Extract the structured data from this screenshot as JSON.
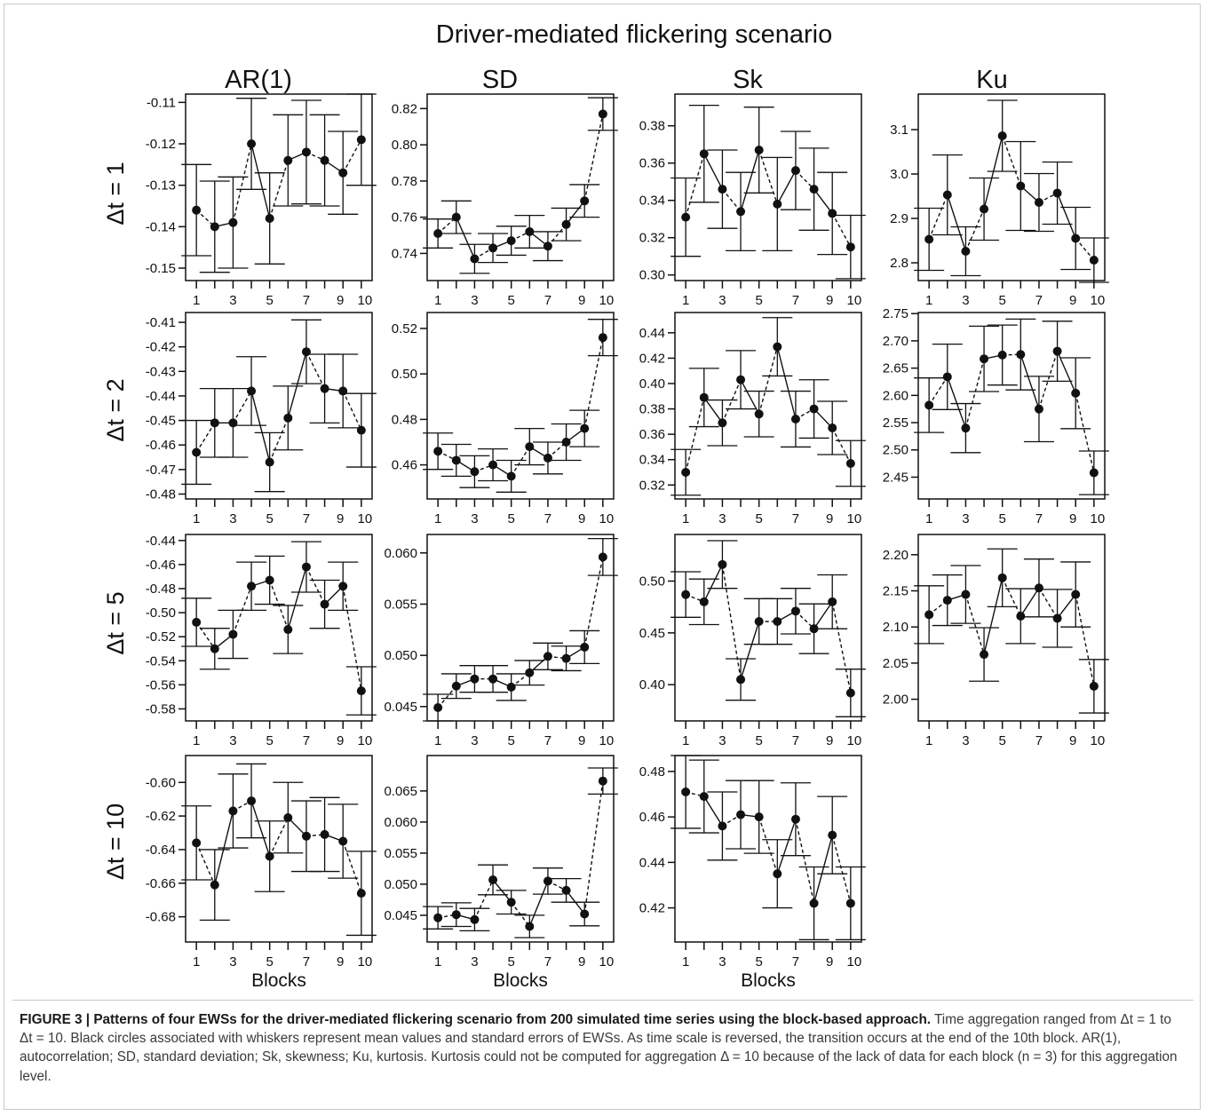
{
  "figure": {
    "main_title": "Driver-mediated flickering scenario",
    "column_titles": [
      "AR(1)",
      "SD",
      "Sk",
      "Ku"
    ],
    "row_titles": [
      "Δt = 1",
      "Δt = 2",
      "Δt = 5",
      "Δt = 10"
    ],
    "x_axis_label": "Blocks",
    "marker_color": "#111111"
  },
  "caption": {
    "bold_text": "FIGURE 3 | Patterns of four EWSs for the driver-mediated flickering scenario from 200 simulated time series using the block-based approach.",
    "body_text": " Time aggregation ranged from Δt = 1 to Δt = 10. Black circles associated with whiskers represent mean values and standard errors of EWSs. As time scale is reversed, the transition occurs at the end of the 10th block. AR(1), autocorrelation; SD, standard deviation; Sk, skewness; Ku, kurtosis. Kurtosis could not be computed for aggregation Δ = 10 because of the lack of data for each block (n = 3) for this aggregation level."
  },
  "chart_data": [
    {
      "type": "scatter",
      "panel": "AR(1) Δt = 1",
      "x": [
        1,
        2,
        3,
        4,
        5,
        6,
        7,
        8,
        9,
        10
      ],
      "y": [
        -0.136,
        -0.14,
        -0.139,
        -0.12,
        -0.138,
        -0.124,
        -0.122,
        -0.124,
        -0.127,
        -0.119
      ],
      "err": [
        0.011,
        0.011,
        0.011,
        0.011,
        0.011,
        0.011,
        0.0125,
        0.011,
        0.01,
        0.011
      ],
      "ylim": [
        -0.153,
        -0.108
      ],
      "yticks": [
        -0.15,
        -0.14,
        -0.13,
        -0.12,
        -0.11
      ],
      "ytick_labels": [
        "-0.15",
        "-0.14",
        "-0.13",
        "-0.12",
        "-0.11"
      ],
      "xtick_labels": [
        "1",
        "3",
        "5",
        "7",
        "9",
        "10"
      ],
      "x_axis_label": ""
    },
    {
      "type": "scatter",
      "panel": "SD Δt = 1",
      "x": [
        1,
        2,
        3,
        4,
        5,
        6,
        7,
        8,
        9,
        10
      ],
      "y": [
        0.751,
        0.76,
        0.737,
        0.743,
        0.747,
        0.752,
        0.744,
        0.756,
        0.769,
        0.817
      ],
      "err": [
        0.008,
        0.009,
        0.008,
        0.008,
        0.008,
        0.009,
        0.008,
        0.009,
        0.009,
        0.009
      ],
      "ylim": [
        0.725,
        0.828
      ],
      "yticks": [
        0.74,
        0.76,
        0.78,
        0.8,
        0.82
      ],
      "ytick_labels": [
        "0.74",
        "0.76",
        "0.78",
        "0.80",
        "0.82"
      ],
      "xtick_labels": [
        "1",
        "3",
        "5",
        "7",
        "9",
        "10"
      ],
      "x_axis_label": ""
    },
    {
      "type": "scatter",
      "panel": "Sk Δt = 1",
      "x": [
        1,
        2,
        3,
        4,
        5,
        6,
        7,
        8,
        9,
        10
      ],
      "y": [
        0.331,
        0.365,
        0.346,
        0.334,
        0.367,
        0.338,
        0.356,
        0.346,
        0.333,
        0.315
      ],
      "err": [
        0.021,
        0.026,
        0.021,
        0.021,
        0.023,
        0.025,
        0.021,
        0.022,
        0.022,
        0.017
      ],
      "ylim": [
        0.297,
        0.397
      ],
      "yticks": [
        0.3,
        0.32,
        0.34,
        0.36,
        0.38
      ],
      "ytick_labels": [
        "0.30",
        "0.32",
        "0.34",
        "0.36",
        "0.38"
      ],
      "xtick_labels": [
        "1",
        "3",
        "5",
        "7",
        "9",
        "10"
      ],
      "x_axis_label": ""
    },
    {
      "type": "scatter",
      "panel": "Ku Δt = 1",
      "x": [
        1,
        2,
        3,
        4,
        5,
        6,
        7,
        8,
        9,
        10
      ],
      "y": [
        2.853,
        2.953,
        2.826,
        2.921,
        3.086,
        2.973,
        2.936,
        2.957,
        2.855,
        2.806
      ],
      "err": [
        0.07,
        0.09,
        0.055,
        0.07,
        0.08,
        0.1,
        0.065,
        0.07,
        0.07,
        0.05
      ],
      "ylim": [
        2.76,
        3.18
      ],
      "yticks": [
        2.8,
        2.9,
        3.0,
        3.1
      ],
      "ytick_labels": [
        "2.8",
        "2.9",
        "3.0",
        "3.1"
      ],
      "xtick_labels": [
        "1",
        "3",
        "5",
        "7",
        "9",
        "10"
      ],
      "x_axis_label": ""
    },
    {
      "type": "scatter",
      "panel": "AR(1) Δt = 2",
      "x": [
        1,
        2,
        3,
        4,
        5,
        6,
        7,
        8,
        9,
        10
      ],
      "y": [
        -0.463,
        -0.451,
        -0.451,
        -0.438,
        -0.467,
        -0.449,
        -0.422,
        -0.437,
        -0.438,
        -0.454
      ],
      "err": [
        0.013,
        0.014,
        0.014,
        0.014,
        0.012,
        0.013,
        0.013,
        0.014,
        0.015,
        0.015
      ],
      "ylim": [
        -0.482,
        -0.406
      ],
      "yticks": [
        -0.48,
        -0.47,
        -0.46,
        -0.45,
        -0.44,
        -0.43,
        -0.42,
        -0.41
      ],
      "ytick_labels": [
        "-0.48",
        "-0.47",
        "-0.46",
        "-0.45",
        "-0.44",
        "-0.43",
        "-0.42",
        "-0.41"
      ],
      "xtick_labels": [
        "1",
        "3",
        "5",
        "7",
        "9",
        "10"
      ],
      "x_axis_label": ""
    },
    {
      "type": "scatter",
      "panel": "SD Δt = 2",
      "x": [
        1,
        2,
        3,
        4,
        5,
        6,
        7,
        8,
        9,
        10
      ],
      "y": [
        0.466,
        0.462,
        0.457,
        0.46,
        0.455,
        0.468,
        0.463,
        0.47,
        0.476,
        0.516
      ],
      "err": [
        0.008,
        0.007,
        0.007,
        0.007,
        0.007,
        0.008,
        0.007,
        0.008,
        0.008,
        0.008
      ],
      "ylim": [
        0.445,
        0.527
      ],
      "yticks": [
        0.46,
        0.48,
        0.5,
        0.52
      ],
      "ytick_labels": [
        "0.46",
        "0.48",
        "0.50",
        "0.52"
      ],
      "xtick_labels": [
        "1",
        "3",
        "5",
        "7",
        "9",
        "10"
      ],
      "x_axis_label": ""
    },
    {
      "type": "scatter",
      "panel": "Sk Δt = 2",
      "x": [
        1,
        2,
        3,
        4,
        5,
        6,
        7,
        8,
        9,
        10
      ],
      "y": [
        0.33,
        0.389,
        0.369,
        0.403,
        0.376,
        0.429,
        0.372,
        0.38,
        0.365,
        0.337
      ],
      "err": [
        0.018,
        0.023,
        0.018,
        0.023,
        0.018,
        0.023,
        0.022,
        0.023,
        0.021,
        0.018
      ],
      "ylim": [
        0.309,
        0.456
      ],
      "yticks": [
        0.32,
        0.34,
        0.36,
        0.38,
        0.4,
        0.42,
        0.44
      ],
      "ytick_labels": [
        "0.32",
        "0.34",
        "0.36",
        "0.38",
        "0.40",
        "0.42",
        "0.44"
      ],
      "xtick_labels": [
        "1",
        "3",
        "5",
        "7",
        "9",
        "10"
      ],
      "x_axis_label": ""
    },
    {
      "type": "scatter",
      "panel": "Ku Δt = 2",
      "x": [
        1,
        2,
        3,
        4,
        5,
        6,
        7,
        8,
        9,
        10
      ],
      "y": [
        2.582,
        2.634,
        2.54,
        2.667,
        2.674,
        2.675,
        2.575,
        2.681,
        2.604,
        2.458
      ],
      "err": [
        0.05,
        0.06,
        0.045,
        0.06,
        0.055,
        0.065,
        0.06,
        0.055,
        0.065,
        0.04
      ],
      "ylim": [
        2.41,
        2.752
      ],
      "yticks": [
        2.45,
        2.5,
        2.55,
        2.6,
        2.65,
        2.7,
        2.75
      ],
      "ytick_labels": [
        "2.45",
        "2.50",
        "2.55",
        "2.60",
        "2.65",
        "2.70",
        "2.75"
      ],
      "xtick_labels": [
        "1",
        "3",
        "5",
        "7",
        "9",
        "10"
      ],
      "x_axis_label": ""
    },
    {
      "type": "scatter",
      "panel": "AR(1) Δt = 5",
      "x": [
        1,
        2,
        3,
        4,
        5,
        6,
        7,
        8,
        9,
        10
      ],
      "y": [
        -0.508,
        -0.53,
        -0.518,
        -0.478,
        -0.473,
        -0.514,
        -0.462,
        -0.493,
        -0.478,
        -0.565
      ],
      "err": [
        0.02,
        0.017,
        0.02,
        0.02,
        0.02,
        0.02,
        0.021,
        0.02,
        0.02,
        0.02
      ],
      "ylim": [
        -0.59,
        -0.435
      ],
      "yticks": [
        -0.58,
        -0.56,
        -0.54,
        -0.52,
        -0.5,
        -0.48,
        -0.46,
        -0.44
      ],
      "ytick_labels": [
        "-0.58",
        "-0.56",
        "-0.54",
        "-0.52",
        "-0.50",
        "-0.48",
        "-0.46",
        "-0.44"
      ],
      "xtick_labels": [
        "1",
        "3",
        "5",
        "7",
        "9",
        "10"
      ],
      "x_axis_label": ""
    },
    {
      "type": "scatter",
      "panel": "SD Δt = 5",
      "x": [
        1,
        2,
        3,
        4,
        5,
        6,
        7,
        8,
        9,
        10
      ],
      "y": [
        0.0449,
        0.047,
        0.0477,
        0.0477,
        0.0469,
        0.0483,
        0.0499,
        0.0497,
        0.0508,
        0.0596
      ],
      "err": [
        0.0013,
        0.0012,
        0.0013,
        0.0013,
        0.0013,
        0.0012,
        0.0013,
        0.0012,
        0.0016,
        0.0018
      ],
      "ylim": [
        0.0436,
        0.0618
      ],
      "yticks": [
        0.045,
        0.05,
        0.055,
        0.06
      ],
      "ytick_labels": [
        "0.045",
        "0.050",
        "0.055",
        "0.060"
      ],
      "xtick_labels": [
        "1",
        "3",
        "5",
        "7",
        "9",
        "10"
      ],
      "x_axis_label": ""
    },
    {
      "type": "scatter",
      "panel": "Sk Δt = 5",
      "x": [
        1,
        2,
        3,
        4,
        5,
        6,
        7,
        8,
        9,
        10
      ],
      "y": [
        0.487,
        0.48,
        0.516,
        0.405,
        0.461,
        0.461,
        0.471,
        0.454,
        0.48,
        0.392
      ],
      "err": [
        0.022,
        0.022,
        0.023,
        0.02,
        0.022,
        0.022,
        0.022,
        0.024,
        0.026,
        0.023
      ],
      "ylim": [
        0.365,
        0.545
      ],
      "yticks": [
        0.4,
        0.45,
        0.5
      ],
      "ytick_labels": [
        "0.40",
        "0.45",
        "0.50"
      ],
      "xtick_labels": [
        "1",
        "3",
        "5",
        "7",
        "9",
        "10"
      ],
      "x_axis_label": ""
    },
    {
      "type": "scatter",
      "panel": "Ku Δt = 5",
      "x": [
        1,
        2,
        3,
        4,
        5,
        6,
        7,
        8,
        9,
        10
      ],
      "y": [
        2.117,
        2.137,
        2.145,
        2.062,
        2.168,
        2.115,
        2.154,
        2.112,
        2.145,
        2.018
      ],
      "err": [
        0.04,
        0.035,
        0.04,
        0.037,
        0.04,
        0.038,
        0.04,
        0.04,
        0.045,
        0.037
      ],
      "ylim": [
        1.97,
        2.228
      ],
      "yticks": [
        2.0,
        2.05,
        2.1,
        2.15,
        2.2
      ],
      "ytick_labels": [
        "2.00",
        "2.05",
        "2.10",
        "2.15",
        "2.20"
      ],
      "xtick_labels": [
        "1",
        "3",
        "5",
        "7",
        "9",
        "10"
      ],
      "x_axis_label": ""
    },
    {
      "type": "scatter",
      "panel": "AR(1) Δt = 10",
      "x": [
        1,
        2,
        3,
        4,
        5,
        6,
        7,
        8,
        9,
        10
      ],
      "y": [
        -0.636,
        -0.661,
        -0.617,
        -0.611,
        -0.644,
        -0.621,
        -0.632,
        -0.631,
        -0.635,
        -0.666
      ],
      "err": [
        0.022,
        0.021,
        0.022,
        0.022,
        0.021,
        0.021,
        0.021,
        0.022,
        0.022,
        0.025
      ],
      "ylim": [
        -0.695,
        -0.584
      ],
      "yticks": [
        -0.68,
        -0.66,
        -0.64,
        -0.62,
        -0.6
      ],
      "ytick_labels": [
        "-0.68",
        "-0.66",
        "-0.64",
        "-0.62",
        "-0.60"
      ],
      "xtick_labels": [
        "1",
        "3",
        "5",
        "7",
        "9",
        "10"
      ],
      "x_axis_label": "Blocks"
    },
    {
      "type": "scatter",
      "panel": "SD Δt = 10",
      "x": [
        1,
        2,
        3,
        4,
        5,
        6,
        7,
        8,
        9,
        10
      ],
      "y": [
        0.0446,
        0.0451,
        0.0443,
        0.0507,
        0.0471,
        0.0432,
        0.0505,
        0.049,
        0.0452,
        0.0666
      ],
      "err": [
        0.0018,
        0.0019,
        0.0018,
        0.0024,
        0.0019,
        0.0018,
        0.0021,
        0.0019,
        0.0019,
        0.0021
      ],
      "ylim": [
        0.0407,
        0.0707
      ],
      "yticks": [
        0.045,
        0.05,
        0.055,
        0.06,
        0.065
      ],
      "ytick_labels": [
        "0.045",
        "0.050",
        "0.055",
        "0.060",
        "0.065"
      ],
      "xtick_labels": [
        "1",
        "3",
        "5",
        "7",
        "9",
        "10"
      ],
      "x_axis_label": "Blocks"
    },
    {
      "type": "scatter",
      "panel": "Sk Δt = 10",
      "x": [
        1,
        2,
        3,
        4,
        5,
        6,
        7,
        8,
        9,
        10
      ],
      "y": [
        0.471,
        0.469,
        0.456,
        0.461,
        0.46,
        0.435,
        0.459,
        0.422,
        0.452,
        0.422
      ],
      "err": [
        0.016,
        0.016,
        0.015,
        0.015,
        0.016,
        0.015,
        0.016,
        0.016,
        0.017,
        0.016
      ],
      "ylim": [
        0.405,
        0.487
      ],
      "yticks": [
        0.42,
        0.44,
        0.46,
        0.48
      ],
      "ytick_labels": [
        "0.42",
        "0.44",
        "0.46",
        "0.48"
      ],
      "xtick_labels": [
        "1",
        "3",
        "5",
        "7",
        "9",
        "10"
      ],
      "x_axis_label": "Blocks"
    }
  ]
}
